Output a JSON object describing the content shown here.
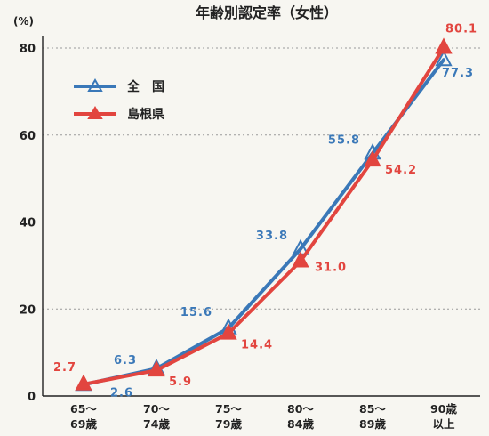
{
  "chart_data": {
    "type": "line",
    "title": "年齢別認定率（女性）",
    "ylabel": "(%)",
    "ylim": [
      0,
      80
    ],
    "yticks": [
      0,
      20,
      40,
      60,
      80
    ],
    "categories": [
      [
        "65～",
        "69歳"
      ],
      [
        "70～",
        "74歳"
      ],
      [
        "75～",
        "79歳"
      ],
      [
        "80～",
        "84歳"
      ],
      [
        "85～",
        "89歳"
      ],
      [
        "90歳",
        "以上"
      ]
    ],
    "series": [
      {
        "name": "全　国",
        "color": "#3a78b8",
        "marker": "open-triangle",
        "values": [
          2.6,
          6.3,
          15.6,
          33.8,
          55.8,
          77.3
        ],
        "labels": [
          "2.6",
          "6.3",
          "15.6",
          "33.8",
          "55.8",
          "77.3"
        ]
      },
      {
        "name": "島根県",
        "color": "#e2453f",
        "marker": "filled-triangle",
        "values": [
          2.7,
          5.9,
          14.4,
          31.0,
          54.2,
          80.1
        ],
        "labels": [
          "2.7",
          "5.9",
          "14.4",
          "31.0",
          "54.2",
          "80.1"
        ]
      }
    ],
    "grid": true,
    "legend": "top-left"
  }
}
